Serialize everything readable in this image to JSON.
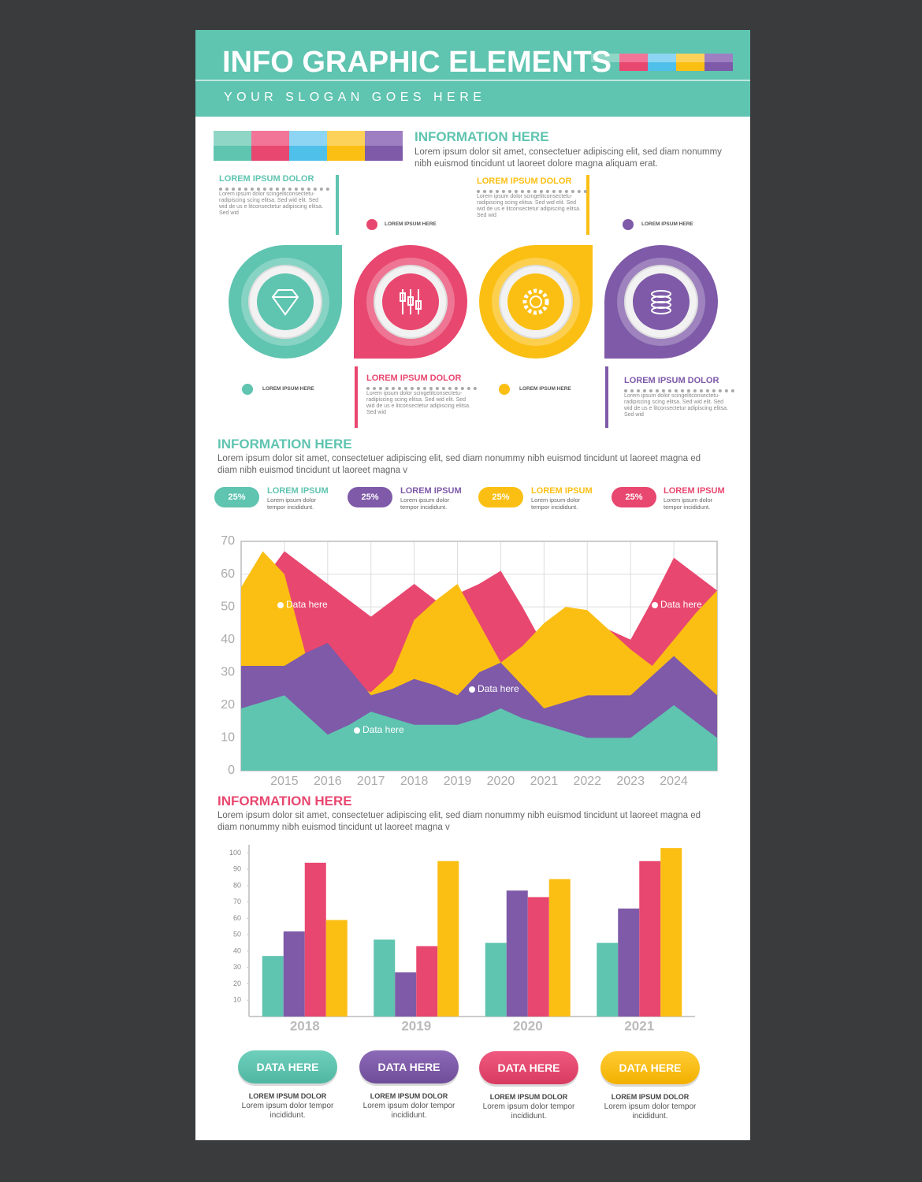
{
  "header": {
    "title": "INFO GRAPHIC ELEMENTS",
    "slogan": "YOUR SLOGAN GOES HERE"
  },
  "intro": {
    "heading": "INFORMATION HERE",
    "text": "Lorem ipsum dolor sit amet, consectetuer adipiscing elit, sed diam nonummy nibh euismod tincidunt ut laoreet dolore magna aliquam erat."
  },
  "steps": [
    {
      "heading": "LOREM IPSUM DOLOR",
      "text": "Lorem ipsum dolor scingelitconsectetu- radipiscing scing elitsa. Sed wid elit. Sed wid de us e litconsectetur adipiscing elitsa. Sed wid",
      "label": "LOREM IPSUM HERE"
    },
    {
      "heading": "LOREM IPSUM DOLOR",
      "text": "Lorem ipsum dolor scingelitconsectetu- radipiscing scing elitsa. Sed wid elit. Sed wid de us e litconsectetur adipiscing elitsa. Sed wid",
      "label": "LOREM IPSUM HERE"
    },
    {
      "heading": "LOREM IPSUM DOLOR",
      "text": "Lorem ipsum dolor scingelitconsectetu- radipiscing scing elitsa. Sed wid elit. Sed wid de us e litconsectetur adipiscing elitsa. Sed wid",
      "label": "LOREM IPSUM HERE"
    },
    {
      "heading": "LOREM IPSUM DOLOR",
      "text": "Lorem ipsum dolor scingelitconsectetu- radipiscing scing elitsa. Sed wid elit. Sed wid de us e litconsectetur adipiscing elitsa. Sed wid",
      "label": "LOREM IPSUM HERE"
    }
  ],
  "section2": {
    "heading": "INFORMATION HERE",
    "text": "Lorem ipsum dolor sit amet, consectetuer adipiscing elit, sed diam nonummy nibh euismod tincidunt ut laoreet magna ed diam nibh euismod tincidunt ut laoreet magna v"
  },
  "stats": [
    {
      "value": "25%",
      "heading": "LOREM IPSUM",
      "text": "Lorem ipsum dolor tempor incididunt."
    },
    {
      "value": "25%",
      "heading": "LOREM IPSUM",
      "text": "Lorem ipsum dolor tempor incididunt."
    },
    {
      "value": "25%",
      "heading": "LOREM IPSUM",
      "text": "Lorem ipsum dolor tempor incididunt."
    },
    {
      "value": "25%",
      "heading": "LOREM IPSUM",
      "text": "Lorem ipsum dolor tempor incididunt."
    }
  ],
  "chart_data": [
    {
      "type": "area",
      "x": [
        2014,
        2014.5,
        2015,
        2015.5,
        2016,
        2016.5,
        2017,
        2017.5,
        2018,
        2018.5,
        2019,
        2019.5,
        2020,
        2020.5,
        2021,
        2021.5,
        2022,
        2022.5,
        2023,
        2023.5,
        2024,
        2024.5,
        2025
      ],
      "xlim": [
        2014,
        2025
      ],
      "xticks": [
        2015,
        2016,
        2017,
        2018,
        2019,
        2020,
        2021,
        2022,
        2023,
        2024
      ],
      "ylim": [
        0,
        70
      ],
      "yticks": [
        0,
        10,
        20,
        30,
        40,
        50,
        60,
        70
      ],
      "grid": true,
      "series": [
        {
          "color": "#e8476f",
          "values": [
            50,
            58,
            67,
            62,
            57,
            52,
            47,
            52,
            57,
            52,
            54,
            57,
            61,
            50,
            38,
            42,
            45,
            43,
            40,
            52,
            65,
            60,
            55
          ]
        },
        {
          "color": "#fbbf14",
          "values": [
            56,
            67,
            60,
            35,
            30,
            26,
            24,
            30,
            46,
            52,
            57,
            45,
            33,
            38,
            45,
            50,
            49,
            43,
            37,
            32,
            40,
            48,
            55
          ]
        },
        {
          "color": "#7e5aa8",
          "values": [
            32,
            32,
            32,
            36,
            39,
            31,
            23,
            25,
            28,
            26,
            23,
            30,
            33,
            26,
            19,
            21,
            23,
            23,
            23,
            29,
            35,
            29,
            23
          ]
        },
        {
          "color": "#5fc4b0",
          "values": [
            19,
            21,
            23,
            17,
            11,
            14,
            18,
            16,
            14,
            14,
            14,
            16,
            19,
            16,
            14,
            12,
            10,
            10,
            10,
            15,
            20,
            15,
            10
          ]
        }
      ],
      "annotations": [
        "Data here",
        "Data here",
        "Data here",
        "Data here"
      ]
    },
    {
      "type": "bar",
      "categories": [
        "2018",
        "2019",
        "2020",
        "2021"
      ],
      "ylim": [
        0,
        105
      ],
      "yticks": [
        10,
        20,
        30,
        40,
        50,
        60,
        70,
        80,
        90,
        100
      ],
      "series": [
        {
          "color": "#5fc4b0",
          "values": [
            37,
            47,
            45,
            45
          ]
        },
        {
          "color": "#7e5aa8",
          "values": [
            52,
            27,
            77,
            66
          ]
        },
        {
          "color": "#e8476f",
          "values": [
            94,
            43,
            73,
            95
          ]
        },
        {
          "color": "#fbbf14",
          "values": [
            59,
            95,
            84,
            103
          ]
        }
      ]
    }
  ],
  "section3": {
    "heading": "INFORMATION HERE",
    "text": "Lorem ipsum dolor sit amet, consectetuer adipiscing elit, sed diam nonummy nibh euismod tincidunt ut laoreet magna ed diam nonummy nibh euismod tincidunt ut laoreet magna v"
  },
  "buttons": [
    {
      "label": "DATA HERE",
      "heading": "LOREM IPSUM DOLOR",
      "text": "Lorem ipsum dolor tempor incididunt."
    },
    {
      "label": "DATA HERE",
      "heading": "LOREM IPSUM DOLOR",
      "text": "Lorem ipsum dolor tempor incididunt."
    },
    {
      "label": "DATA HERE",
      "heading": "LOREM IPSUM DOLOR",
      "text": "Lorem ipsum dolor tempor incididunt."
    },
    {
      "label": "DATA HERE",
      "heading": "LOREM IPSUM DOLOR",
      "text": "Lorem ipsum dolor tempor incididunt."
    }
  ]
}
